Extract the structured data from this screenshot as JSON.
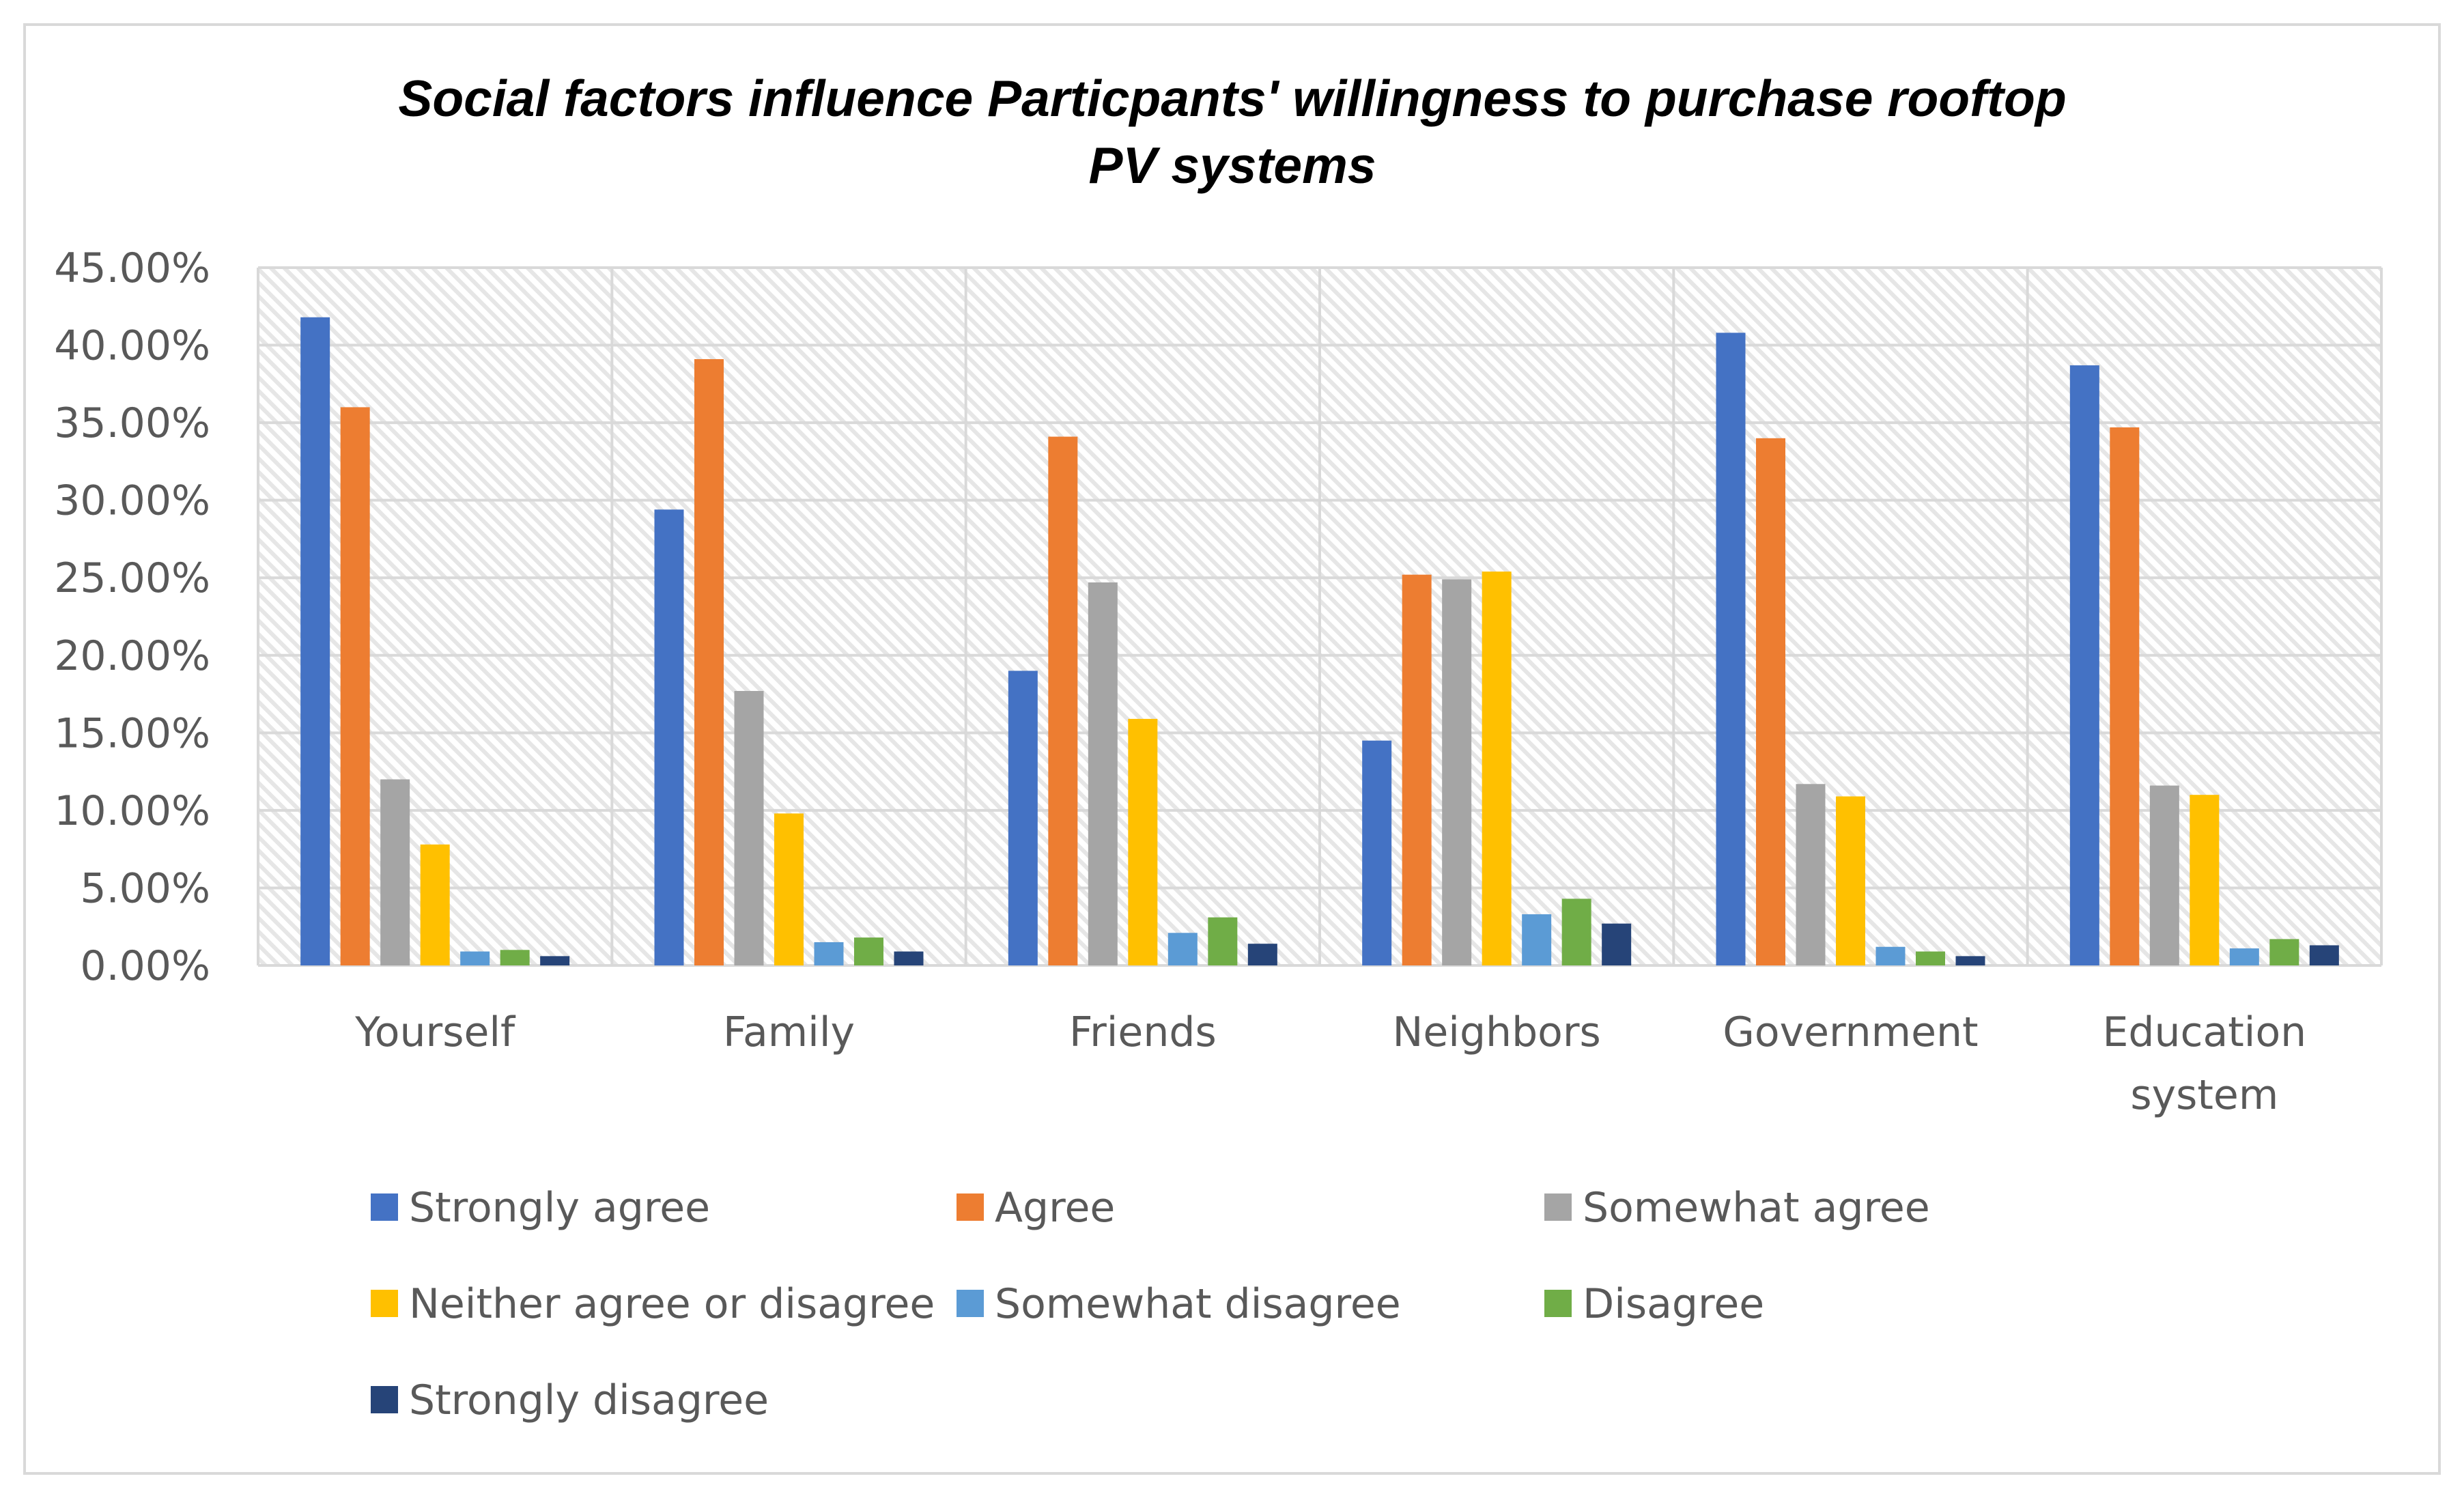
{
  "chart_data": {
    "type": "bar",
    "title_lines": [
      "Social factors influence Particpants' willingness to purchase rooftop",
      "PV systems"
    ],
    "xlabel": "",
    "ylabel": "",
    "ylim": [
      0,
      0.45
    ],
    "ytick_step": 0.05,
    "ytick_labels": [
      "0.00%",
      "5.00%",
      "10.00%",
      "15.00%",
      "20.00%",
      "25.00%",
      "30.00%",
      "35.00%",
      "40.00%",
      "45.00%"
    ],
    "grid": true,
    "legend_position": "bottom",
    "categories": [
      {
        "lines": [
          "Yourself"
        ]
      },
      {
        "lines": [
          "Family"
        ]
      },
      {
        "lines": [
          "Friends"
        ]
      },
      {
        "lines": [
          "Neighbors"
        ]
      },
      {
        "lines": [
          "Government"
        ]
      },
      {
        "lines": [
          "Education",
          "system"
        ]
      }
    ],
    "series": [
      {
        "name": "Strongly agree",
        "color": "#4472c4",
        "values": [
          0.418,
          0.294,
          0.19,
          0.145,
          0.408,
          0.387
        ]
      },
      {
        "name": "Agree",
        "color": "#ed7d31",
        "values": [
          0.36,
          0.391,
          0.341,
          0.252,
          0.34,
          0.347
        ]
      },
      {
        "name": "Somewhat agree",
        "color": "#a5a5a5",
        "values": [
          0.12,
          0.177,
          0.247,
          0.249,
          0.117,
          0.116
        ]
      },
      {
        "name": "Neither agree or disagree",
        "color": "#ffc000",
        "values": [
          0.078,
          0.098,
          0.159,
          0.254,
          0.109,
          0.11
        ]
      },
      {
        "name": "Somewhat disagree",
        "color": "#5b9bd5",
        "values": [
          0.009,
          0.015,
          0.021,
          0.033,
          0.012,
          0.011
        ]
      },
      {
        "name": "Disagree",
        "color": "#70ad47",
        "values": [
          0.01,
          0.018,
          0.031,
          0.043,
          0.009,
          0.017
        ]
      },
      {
        "name": "Strongly disagree",
        "color": "#264478",
        "values": [
          0.006,
          0.009,
          0.014,
          0.027,
          0.006,
          0.013
        ]
      }
    ]
  }
}
